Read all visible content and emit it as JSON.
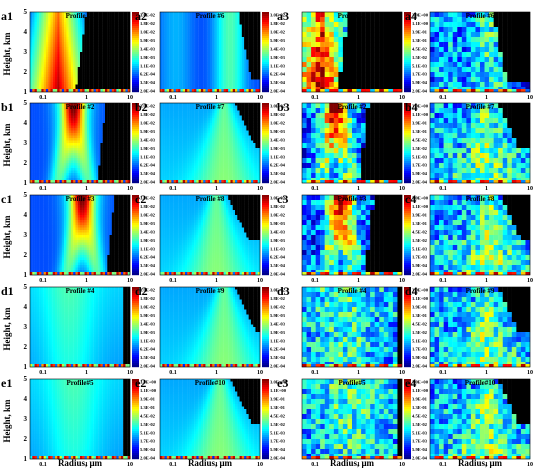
{
  "chart_data": {
    "type": "heatmap",
    "x_axis": {
      "label": "Radius, μm",
      "scale": "log",
      "ticks": [
        "0.1",
        "1",
        "10"
      ]
    },
    "y_axis": {
      "label": "Height, km",
      "range": [
        1,
        5
      ],
      "ticks": [
        "1",
        "2",
        "3",
        "4",
        "5"
      ]
    },
    "colorbar_scales": {
      "fine": [
        "3.0E-02",
        "1.8E-02",
        "1.0E-02",
        "5.9E-03",
        "3.4E-03",
        "1.9E-03",
        "1.1E-03",
        "6.2E-04",
        "3.5E-04",
        "2.0E-04"
      ],
      "wide": [
        "3.0E+00",
        "1.1E+00",
        "3.9E-01",
        "1.3E-01",
        "4.5E-02",
        "1.5E-02",
        "5.1E-03",
        "1.7E-03",
        "5.9E-04",
        "2.0E-04"
      ]
    },
    "panels": [
      {
        "id": "a1",
        "title": "Profile #1",
        "colorbar": "fine",
        "kind": "smooth",
        "mode": 0.25,
        "pattern": "single"
      },
      {
        "id": "a2",
        "title": "Profile #6",
        "colorbar": "fine",
        "kind": "smooth",
        "mode": 2.0,
        "pattern": "cone"
      },
      {
        "id": "a3",
        "title": "Profile #1",
        "colorbar": "wide",
        "kind": "blocky",
        "mode": 0.15,
        "pattern": "single"
      },
      {
        "id": "a4",
        "title": "Profile #6",
        "colorbar": null,
        "kind": "blocky",
        "mode": 0.9,
        "pattern": "cone"
      },
      {
        "id": "b1",
        "title": "Profile #2",
        "colorbar": "fine",
        "kind": "smooth",
        "mode": 0.5,
        "pattern": "fork"
      },
      {
        "id": "b2",
        "title": "Profile #7",
        "colorbar": "fine",
        "kind": "smooth",
        "mode": 1.5,
        "pattern": "tent"
      },
      {
        "id": "b3",
        "title": "Profile #2",
        "colorbar": "wide",
        "kind": "blocky",
        "mode": 0.3,
        "pattern": "fork"
      },
      {
        "id": "b4",
        "title": "Profile #7",
        "colorbar": null,
        "kind": "blocky",
        "mode": 1.0,
        "pattern": "tent"
      },
      {
        "id": "c1",
        "title": "Profile #3",
        "colorbar": "fine",
        "kind": "smooth",
        "mode": 0.8,
        "pattern": "fork"
      },
      {
        "id": "c2",
        "title": "Profile #8",
        "colorbar": "fine",
        "kind": "smooth",
        "mode": 1.0,
        "pattern": "tent"
      },
      {
        "id": "c3",
        "title": "Profile #3",
        "colorbar": "wide",
        "kind": "blocky",
        "mode": 0.4,
        "pattern": "fork"
      },
      {
        "id": "c4",
        "title": "Profile #8",
        "colorbar": null,
        "kind": "blocky",
        "mode": 1.2,
        "pattern": "tent"
      },
      {
        "id": "d1",
        "title": "Profile #4",
        "colorbar": "fine",
        "kind": "smooth",
        "mode": 0.4,
        "pattern": "wide"
      },
      {
        "id": "d2",
        "title": "Profile #9",
        "colorbar": "fine",
        "kind": "smooth",
        "mode": 1.5,
        "pattern": "tent"
      },
      {
        "id": "d3",
        "title": "Profile #4",
        "colorbar": "wide",
        "kind": "blocky",
        "mode": 0.5,
        "pattern": "wide"
      },
      {
        "id": "d4",
        "title": "Profile #9",
        "colorbar": null,
        "kind": "blocky",
        "mode": 1.0,
        "pattern": "tent"
      },
      {
        "id": "e1",
        "title": "Profile#5",
        "colorbar": "wide",
        "kind": "smooth",
        "mode": 0.5,
        "pattern": "wide"
      },
      {
        "id": "e2",
        "title": "Profile#10",
        "colorbar": "wide",
        "kind": "smooth",
        "mode": 1.2,
        "pattern": "tent"
      },
      {
        "id": "e3",
        "title": "Profile#5",
        "colorbar": "wide",
        "kind": "blocky",
        "mode": 0.6,
        "pattern": "wide"
      },
      {
        "id": "e4",
        "title": "Profile#10",
        "colorbar": null,
        "kind": "blocky",
        "mode": 1.0,
        "pattern": "tent"
      }
    ]
  }
}
